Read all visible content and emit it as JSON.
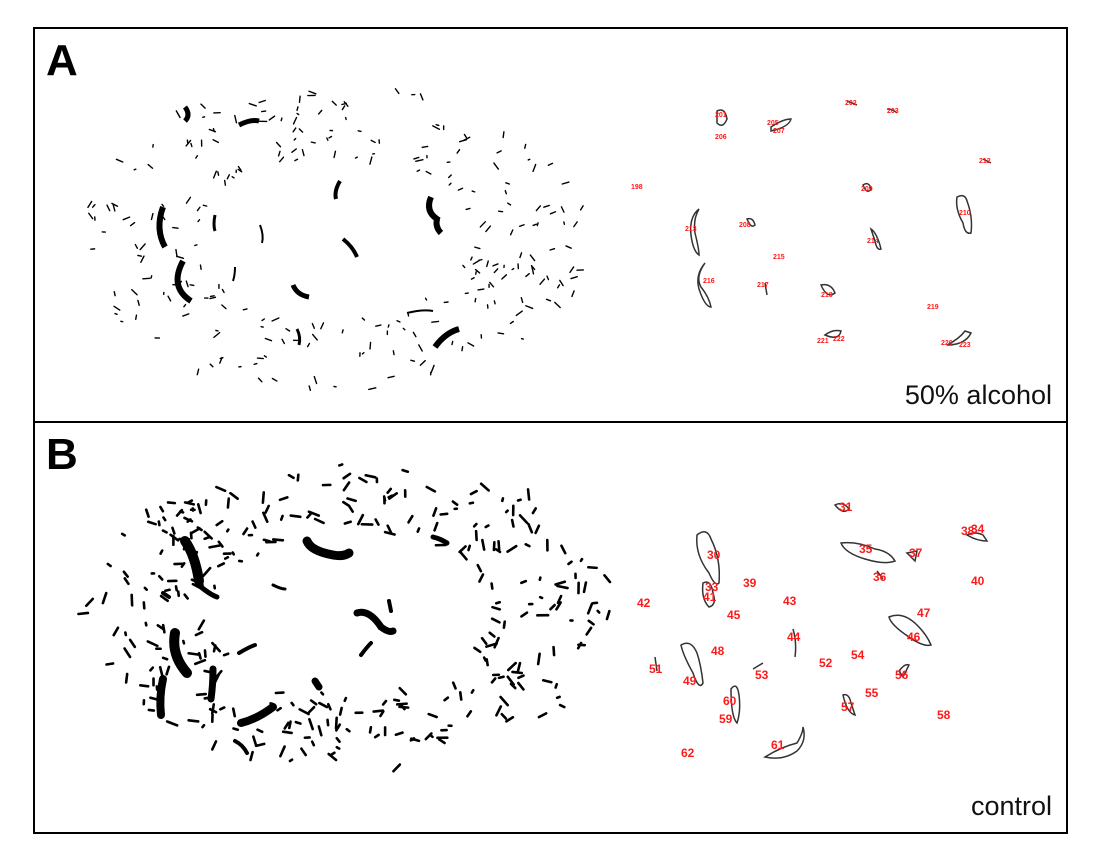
{
  "panels": [
    {
      "letter": "A",
      "caption": "50% alcohol",
      "labels": [
        "201",
        "205",
        "206",
        "202",
        "203",
        "198",
        "207",
        "212",
        "209",
        "210",
        "213",
        "208",
        "214",
        "215",
        "216",
        "217",
        "218",
        "219",
        "220",
        "221",
        "222",
        "223"
      ]
    },
    {
      "letter": "B",
      "caption": "control",
      "labels": [
        "30",
        "31",
        "33",
        "34",
        "35",
        "37",
        "38",
        "36",
        "40",
        "41",
        "39",
        "42",
        "45",
        "43",
        "44",
        "46",
        "47",
        "48",
        "49",
        "51",
        "52",
        "53",
        "54",
        "55",
        "56",
        "57",
        "58",
        "59",
        "60",
        "61",
        "62"
      ]
    }
  ],
  "colors": {
    "frame": "#000000",
    "label": "#ff1a1a",
    "outline": "#333333"
  }
}
